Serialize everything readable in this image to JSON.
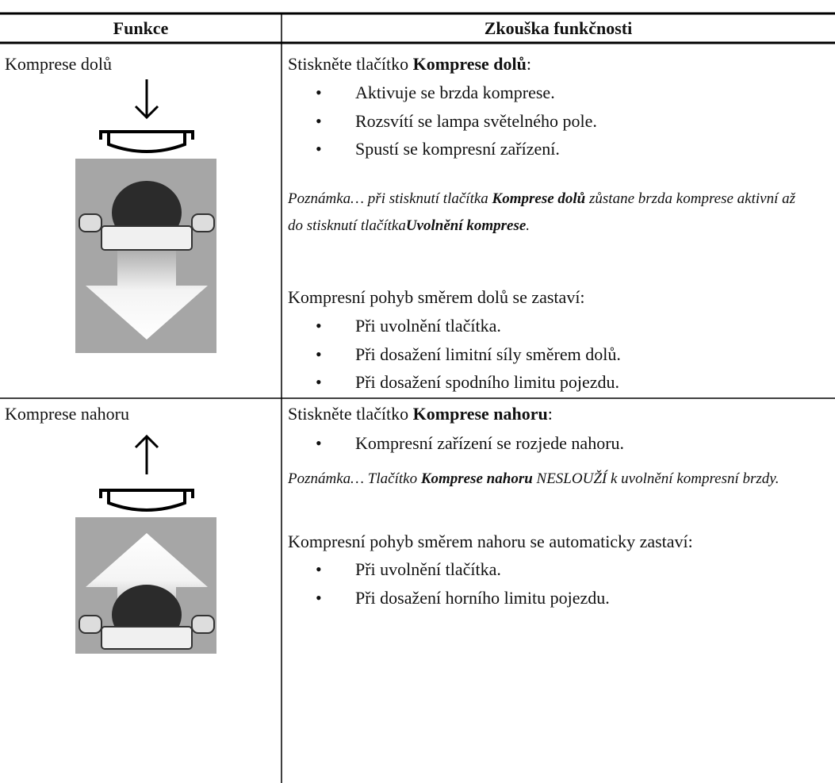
{
  "table": {
    "header": [
      "Funkce",
      "Zkouška funkčnosti"
    ],
    "rows": [
      {
        "function": "Komprese dolů",
        "intro": [
          "Stiskněte tlačítko ",
          "Komprese dolů",
          ":"
        ],
        "bullets": [
          "Aktivuje se brzda komprese.",
          "Rozsvítí se lampa světelného pole.",
          "Spustí se kompresní zařízení."
        ],
        "note": [
          "Poznámka… při stisknutí tlačítka ",
          "Komprese dolů",
          "  zůstane brzda komprese aktivní až do stisknutí tlačítka",
          "Uvolnění komprese",
          "."
        ],
        "stop_intro": "Kompresní pohyb směrem dolů se zastaví:",
        "stop_bullets": [
          "Při uvolnění tlačítka.",
          "Při dosažení limitní síly směrem dolů.",
          "Při dosažení spodního limitu pojezdu."
        ]
      },
      {
        "function": "Komprese nahoru",
        "intro": [
          "Stiskněte tlačítko ",
          "Komprese nahoru",
          ":"
        ],
        "bullets": [
          "Kompresní zařízení se rozjede nahoru."
        ],
        "note": [
          "Poznámka… Tlačítko ",
          "Komprese nahoru",
          " NESLOUŽÍ k uvolnění kompresní brzdy."
        ],
        "stop_intro": "Kompresní pohyb směrem nahoru se automaticky zastaví:",
        "stop_bullets": [
          "Při uvolnění tlačítka.",
          "Při dosažení horního limitu pojezdu."
        ]
      }
    ]
  }
}
